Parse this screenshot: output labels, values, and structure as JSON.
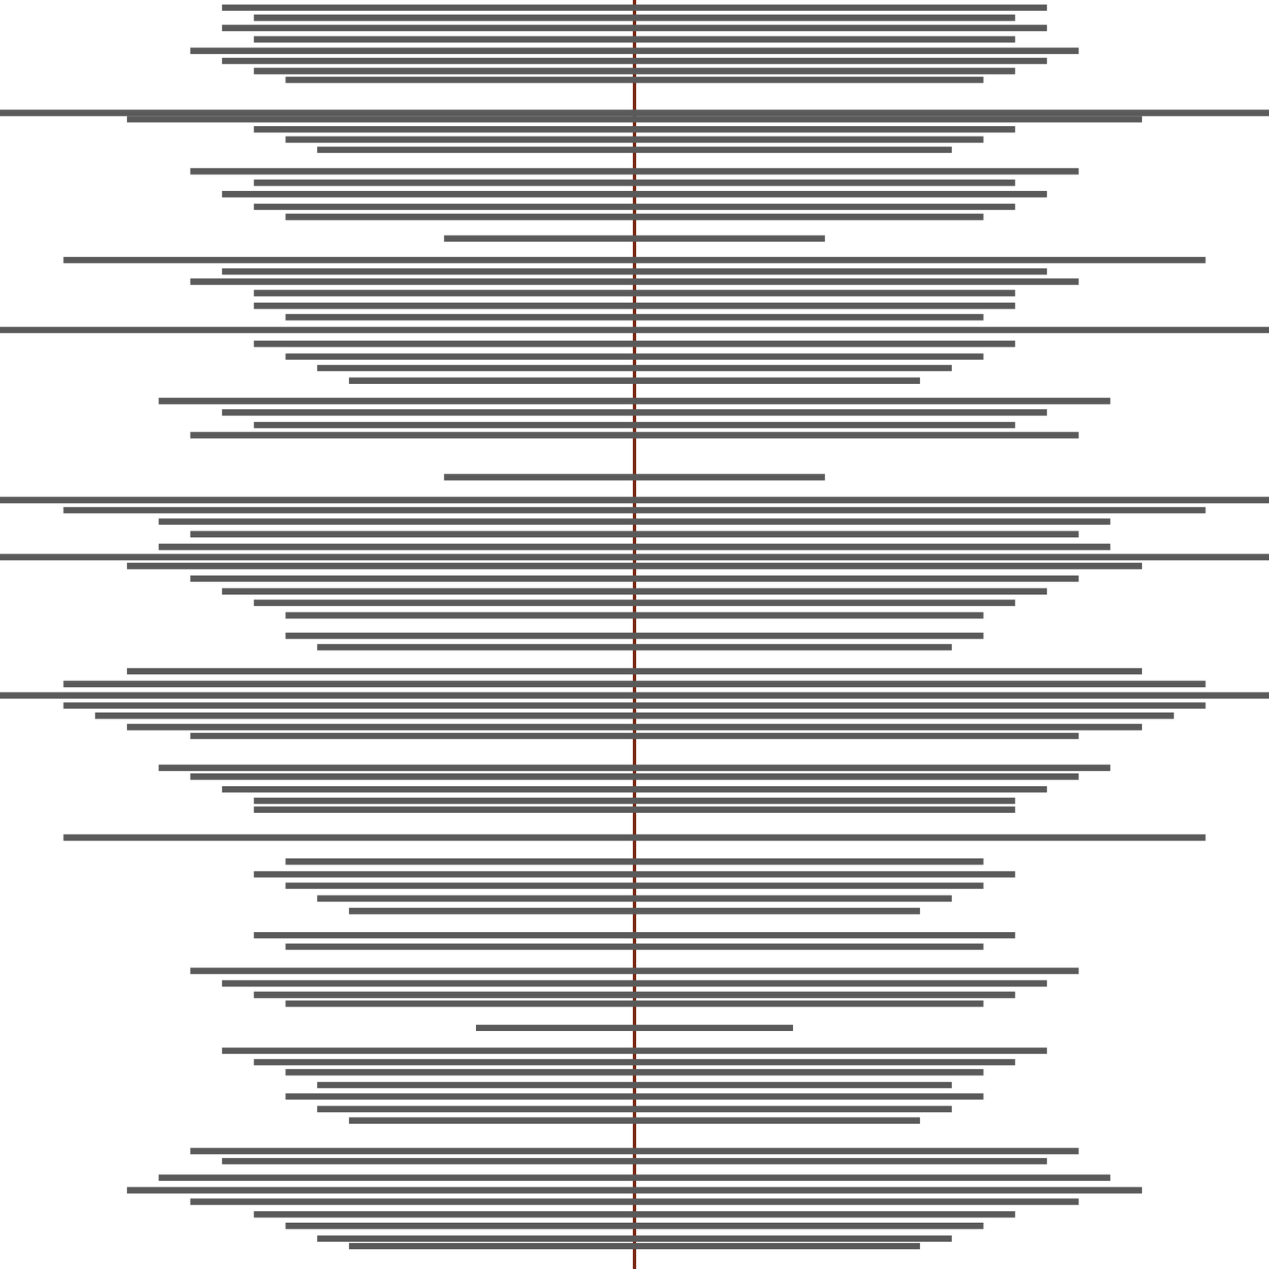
{
  "chart_data": {
    "type": "line",
    "xlim": [
      -1,
      1
    ],
    "ylim": [
      0,
      100
    ],
    "tick_labels": false,
    "grid": false,
    "bands": {
      "color": "#5a5a5a",
      "y": [
        99.4,
        98.6,
        97.8,
        96.9,
        96.0,
        95.2,
        94.4,
        93.7,
        91.1,
        90.6,
        89.8,
        89.0,
        88.2,
        86.5,
        85.6,
        84.7,
        83.7,
        82.9,
        81.2,
        79.5,
        78.6,
        77.8,
        76.9,
        75.9,
        75.0,
        74.0,
        72.9,
        71.9,
        71.0,
        70.0,
        68.4,
        67.5,
        66.5,
        65.7,
        62.4,
        60.6,
        59.8,
        58.9,
        57.9,
        56.9,
        56.1,
        55.4,
        54.4,
        53.4,
        52.5,
        51.5,
        49.9,
        49.0,
        47.1,
        46.1,
        45.2,
        44.4,
        43.6,
        42.7,
        42.0,
        39.5,
        38.8,
        37.8,
        36.9,
        36.2,
        34.0,
        32.1,
        31.1,
        30.2,
        29.2,
        28.2,
        26.3,
        25.4,
        23.5,
        22.5,
        21.6,
        20.9,
        19.0,
        17.2,
        16.3,
        15.5,
        14.5,
        13.6,
        12.6,
        11.7,
        9.3,
        8.5,
        7.2,
        6.2,
        5.3,
        4.3,
        3.4,
        2.4,
        1.8
      ],
      "x_from": [
        -0.65,
        -0.6,
        -0.65,
        -0.6,
        -0.7,
        -0.65,
        -0.6,
        -0.55,
        -1.0,
        -0.8,
        -0.6,
        -0.55,
        -0.5,
        -0.7,
        -0.6,
        -0.65,
        -0.6,
        -0.55,
        -0.3,
        -0.9,
        -0.65,
        -0.7,
        -0.6,
        -0.6,
        -0.55,
        -1.0,
        -0.6,
        -0.55,
        -0.5,
        -0.45,
        -0.75,
        -0.65,
        -0.6,
        -0.7,
        -0.3,
        -1.0,
        -0.9,
        -0.75,
        -0.7,
        -0.75,
        -1.0,
        -0.8,
        -0.7,
        -0.65,
        -0.6,
        -0.55,
        -0.55,
        -0.5,
        -0.8,
        -0.9,
        -1.0,
        -0.9,
        -0.85,
        -0.8,
        -0.7,
        -0.75,
        -0.7,
        -0.65,
        -0.6,
        -0.6,
        -0.9,
        -0.55,
        -0.6,
        -0.55,
        -0.5,
        -0.45,
        -0.6,
        -0.55,
        -0.7,
        -0.65,
        -0.6,
        -0.55,
        -0.25,
        -0.65,
        -0.6,
        -0.55,
        -0.5,
        -0.55,
        -0.5,
        -0.45,
        -0.7,
        -0.65,
        -0.75,
        -0.8,
        -0.7,
        -0.6,
        -0.55,
        -0.5,
        -0.45
      ],
      "x_to": [
        0.65,
        0.6,
        0.65,
        0.6,
        0.7,
        0.65,
        0.6,
        0.55,
        1.0,
        0.8,
        0.6,
        0.55,
        0.5,
        0.7,
        0.6,
        0.65,
        0.6,
        0.55,
        0.3,
        0.9,
        0.65,
        0.7,
        0.6,
        0.6,
        0.55,
        1.0,
        0.6,
        0.55,
        0.5,
        0.45,
        0.75,
        0.65,
        0.6,
        0.7,
        0.3,
        1.0,
        0.9,
        0.75,
        0.7,
        0.75,
        1.0,
        0.8,
        0.7,
        0.65,
        0.6,
        0.55,
        0.55,
        0.5,
        0.8,
        0.9,
        1.0,
        0.9,
        0.85,
        0.8,
        0.7,
        0.75,
        0.7,
        0.65,
        0.6,
        0.6,
        0.9,
        0.55,
        0.6,
        0.55,
        0.5,
        0.45,
        0.6,
        0.55,
        0.7,
        0.65,
        0.6,
        0.55,
        0.25,
        0.65,
        0.6,
        0.55,
        0.5,
        0.55,
        0.5,
        0.45,
        0.7,
        0.65,
        0.75,
        0.8,
        0.7,
        0.6,
        0.55,
        0.5,
        0.45
      ]
    },
    "center_line": {
      "color": "#7a2a14",
      "x": [
        0,
        0
      ],
      "y": [
        0,
        100
      ]
    }
  }
}
